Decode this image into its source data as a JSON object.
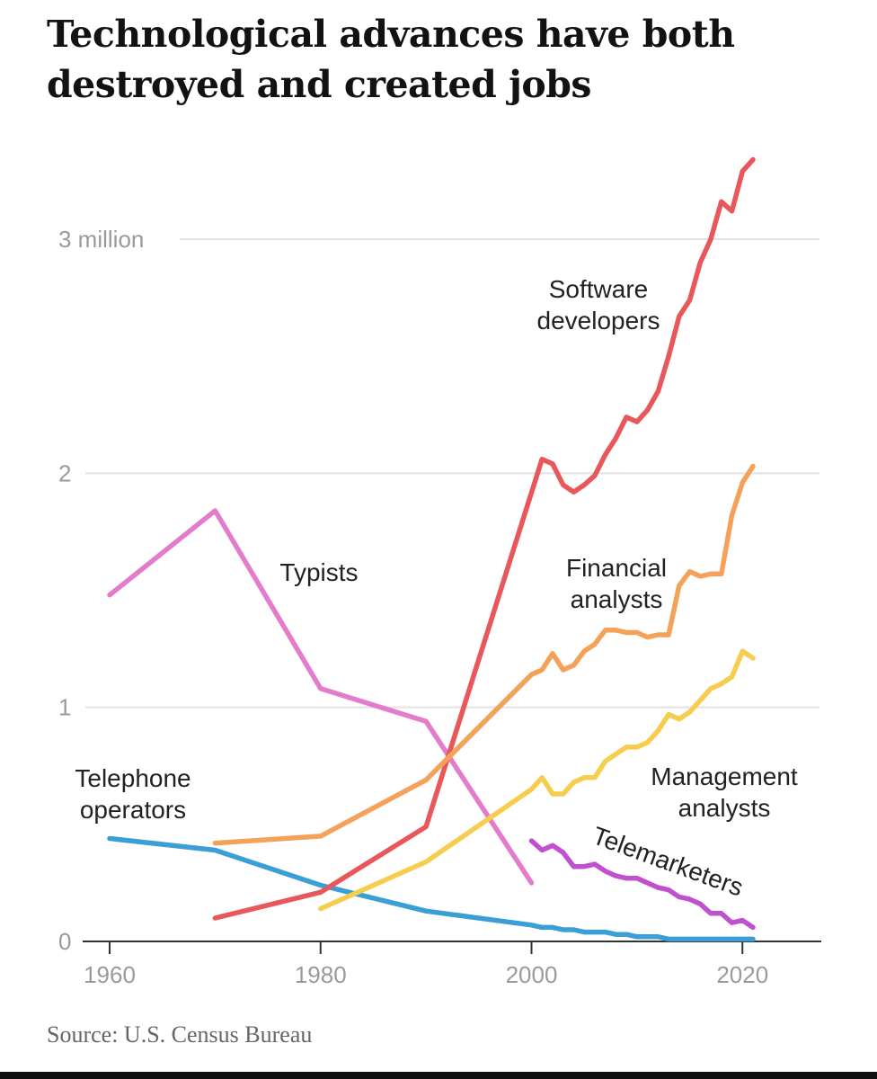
{
  "title": "Technological advances have both destroyed and created jobs",
  "source": "Source: U.S. Census Bureau",
  "chart_data": {
    "type": "line",
    "title": "Technological advances have both destroyed and created jobs",
    "xlabel": "",
    "ylabel": "",
    "xlim": [
      1960,
      2021
    ],
    "ylim": [
      0,
      3.4
    ],
    "x_ticks": [
      {
        "value": 1960,
        "label": "1960"
      },
      {
        "value": 1980,
        "label": "1980"
      },
      {
        "value": 2000,
        "label": "2000"
      },
      {
        "value": 2020,
        "label": "2020"
      }
    ],
    "y_ticks": [
      {
        "value": 0,
        "label": "0"
      },
      {
        "value": 1,
        "label": "1"
      },
      {
        "value": 2,
        "label": "2"
      },
      {
        "value": 3,
        "label": "3 million"
      }
    ],
    "grid": true,
    "legend": "direct labels",
    "series": [
      {
        "name": "Typists",
        "color": "#e27ccb",
        "labels": [
          "Typists"
        ],
        "x": [
          1960,
          1970,
          1980,
          1990,
          2000
        ],
        "y": [
          1.48,
          1.84,
          1.08,
          0.94,
          0.25
        ]
      },
      {
        "name": "Telephone operators",
        "color": "#3a9fd6",
        "labels": [
          "Telephone",
          "operators"
        ],
        "x": [
          1960,
          1970,
          1980,
          1990,
          2000,
          2001,
          2002,
          2003,
          2004,
          2005,
          2006,
          2007,
          2008,
          2009,
          2010,
          2011,
          2012,
          2013,
          2014,
          2015,
          2016,
          2017,
          2018,
          2019,
          2020,
          2021
        ],
        "y": [
          0.44,
          0.39,
          0.24,
          0.13,
          0.07,
          0.06,
          0.06,
          0.05,
          0.05,
          0.04,
          0.04,
          0.04,
          0.03,
          0.03,
          0.02,
          0.02,
          0.02,
          0.01,
          0.01,
          0.01,
          0.01,
          0.01,
          0.01,
          0.01,
          0.01,
          0.01
        ]
      },
      {
        "name": "Software developers",
        "color": "#e8575a",
        "labels": [
          "Software",
          "developers"
        ],
        "x": [
          1970,
          1980,
          1990,
          2001,
          2002,
          2003,
          2004,
          2005,
          2006,
          2007,
          2008,
          2009,
          2010,
          2011,
          2012,
          2013,
          2014,
          2015,
          2016,
          2017,
          2018,
          2019,
          2020,
          2021
        ],
        "y": [
          0.1,
          0.21,
          0.49,
          2.06,
          2.04,
          1.95,
          1.92,
          1.95,
          1.99,
          2.08,
          2.15,
          2.24,
          2.22,
          2.27,
          2.35,
          2.5,
          2.67,
          2.74,
          2.9,
          3.0,
          3.16,
          3.12,
          3.29,
          3.34
        ]
      },
      {
        "name": "Financial analysts",
        "color": "#f4a259",
        "labels": [
          "Financial",
          "analysts"
        ],
        "x": [
          1970,
          1980,
          1990,
          2000,
          2001,
          2002,
          2003,
          2004,
          2005,
          2006,
          2007,
          2008,
          2009,
          2010,
          2011,
          2012,
          2013,
          2014,
          2015,
          2016,
          2017,
          2018,
          2019,
          2020,
          2021
        ],
        "y": [
          0.42,
          0.45,
          0.69,
          1.14,
          1.16,
          1.23,
          1.16,
          1.18,
          1.24,
          1.27,
          1.33,
          1.33,
          1.32,
          1.32,
          1.3,
          1.31,
          1.31,
          1.52,
          1.58,
          1.56,
          1.57,
          1.57,
          1.82,
          1.96,
          2.03
        ]
      },
      {
        "name": "Management analysts",
        "color": "#f6cd4e",
        "labels": [
          "Management",
          "analysts"
        ],
        "x": [
          1980,
          1990,
          2000,
          2001,
          2002,
          2003,
          2004,
          2005,
          2006,
          2007,
          2008,
          2009,
          2010,
          2011,
          2012,
          2013,
          2014,
          2015,
          2016,
          2017,
          2018,
          2019,
          2020,
          2021
        ],
        "y": [
          0.14,
          0.34,
          0.65,
          0.7,
          0.63,
          0.63,
          0.68,
          0.7,
          0.7,
          0.77,
          0.8,
          0.83,
          0.83,
          0.85,
          0.9,
          0.97,
          0.95,
          0.98,
          1.03,
          1.08,
          1.1,
          1.13,
          1.24,
          1.21
        ]
      },
      {
        "name": "Telemarketers",
        "color": "#c050d0",
        "labels": [
          "Telemarketers"
        ],
        "x": [
          2000,
          2001,
          2002,
          2003,
          2004,
          2005,
          2006,
          2007,
          2008,
          2009,
          2010,
          2011,
          2012,
          2013,
          2014,
          2015,
          2016,
          2017,
          2018,
          2019,
          2020,
          2021
        ],
        "y": [
          0.43,
          0.39,
          0.41,
          0.38,
          0.32,
          0.32,
          0.33,
          0.3,
          0.28,
          0.27,
          0.27,
          0.25,
          0.23,
          0.22,
          0.19,
          0.18,
          0.16,
          0.12,
          0.12,
          0.08,
          0.09,
          0.06
        ]
      }
    ]
  }
}
